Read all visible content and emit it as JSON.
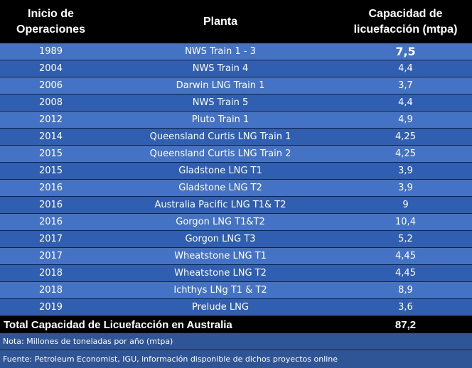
{
  "header": {
    "col_year": "Inicio de Operaciones",
    "col_plant": "Planta",
    "col_capacity": "Capacidad de licuefacción (mtpa)"
  },
  "rows": [
    {
      "year": "1989",
      "plant": "NWS Train 1 - 3",
      "capacity": "7,5"
    },
    {
      "year": "2004",
      "plant": "NWS Train 4",
      "capacity": "4,4"
    },
    {
      "year": "2006",
      "plant": "Darwin LNG Train 1",
      "capacity": "3,7"
    },
    {
      "year": "2008",
      "plant": "NWS Train 5",
      "capacity": "4,4"
    },
    {
      "year": "2012",
      "plant": "Pluto Train 1",
      "capacity": "4,9"
    },
    {
      "year": "2014",
      "plant": "Queensland Curtis LNG Train 1",
      "capacity": "4,25"
    },
    {
      "year": "2015",
      "plant": "Queensland Curtis LNG Train 2",
      "capacity": "4,25"
    },
    {
      "year": "2015",
      "plant": "Gladstone LNG T1",
      "capacity": "3,9"
    },
    {
      "year": "2016",
      "plant": "Gladstone LNG T2",
      "capacity": "3,9"
    },
    {
      "year": "2016",
      "plant": "Australia Pacific LNG T1& T2",
      "capacity": "9"
    },
    {
      "year": "2016",
      "plant": "Gorgon LNG T1&T2",
      "capacity": "10,4"
    },
    {
      "year": "2017",
      "plant": "Gorgon LNG T3",
      "capacity": "5,2"
    },
    {
      "year": "2017",
      "plant": "Wheatstone LNG T1",
      "capacity": "4,45"
    },
    {
      "year": "2018",
      "plant": "Wheatstone LNG T2",
      "capacity": "4,45"
    },
    {
      "year": "2018",
      "plant": "Ichthys LNg T1 & T2",
      "capacity": "8,9"
    },
    {
      "year": "2019",
      "plant": "Prelude LNG",
      "capacity": "3,6"
    }
  ],
  "total": {
    "label": "Total Capacidad de Licuefacción en Australia",
    "value": "87,2"
  },
  "notes": {
    "unit_note": "Nota: Millones de toneladas por año (mtpa)",
    "source": "Fuente: Petroleum Economist, IGU, información disponible de dichos proyectos online"
  }
}
